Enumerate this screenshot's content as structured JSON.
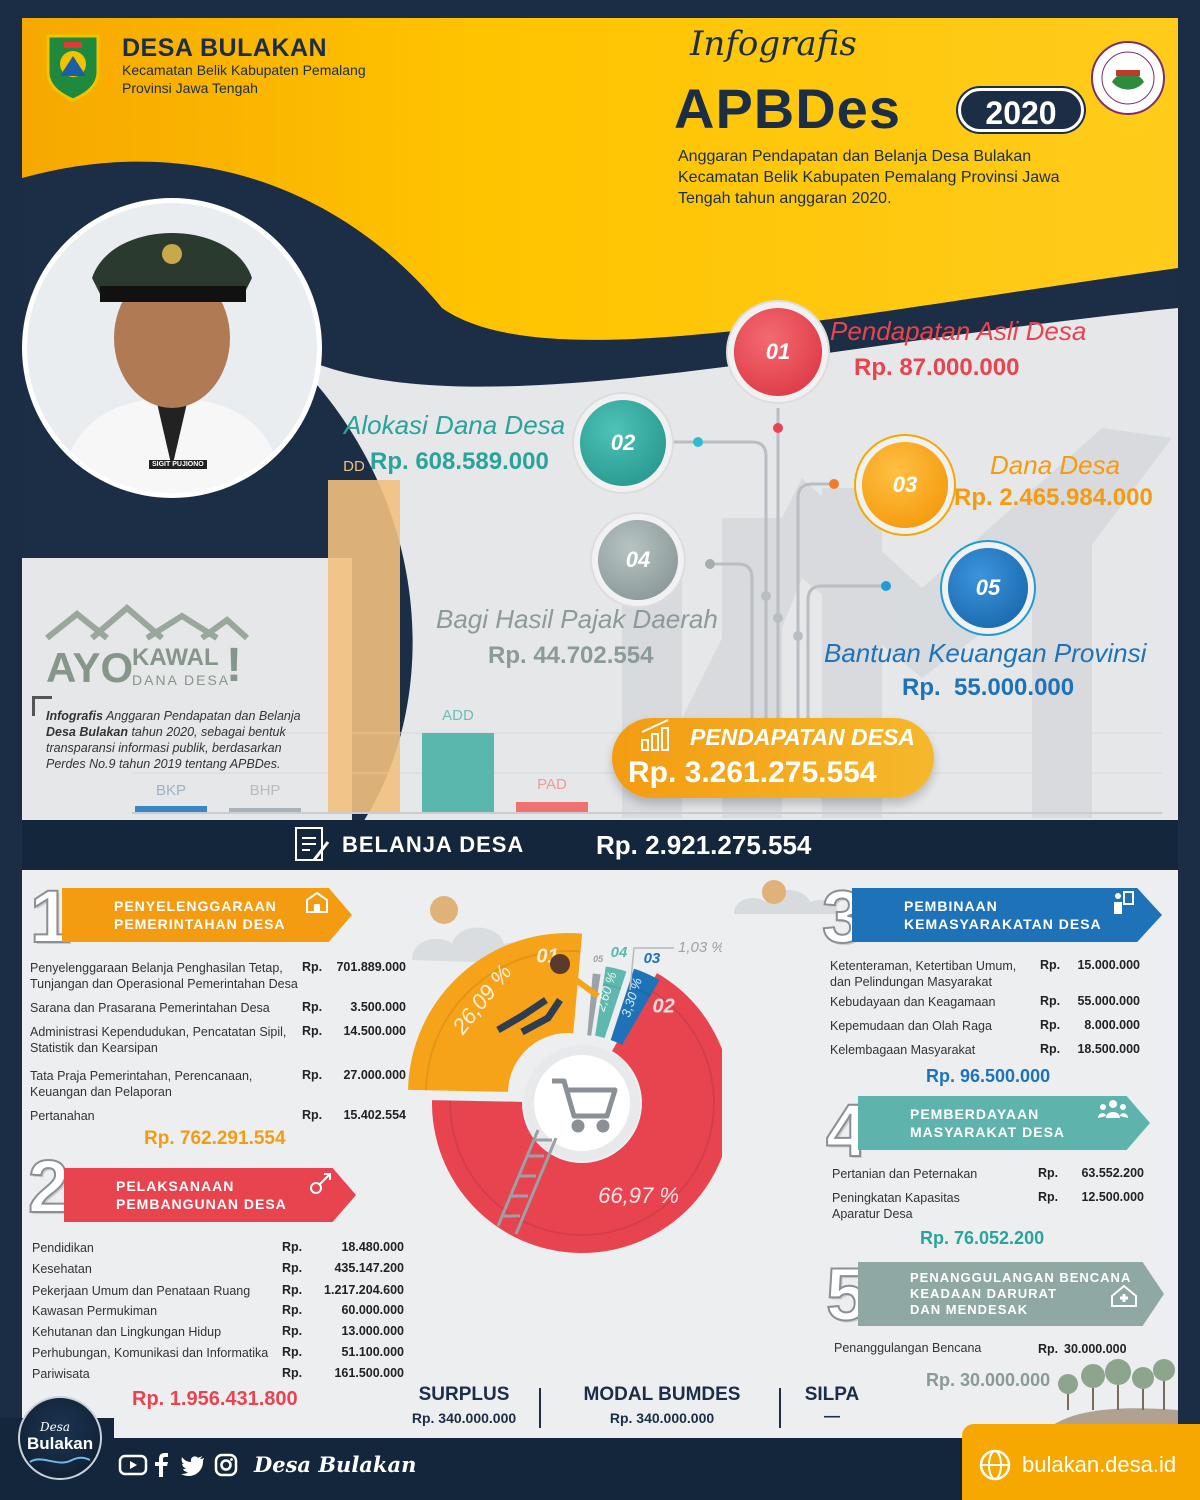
{
  "header": {
    "village": "DESA BULAKAN",
    "subtitle1": "Kecamatan Belik Kabupaten Pemalang",
    "subtitle2": "Provinsi Jawa Tengah",
    "script_title": "Infografis",
    "main_title": "APBDes",
    "year": "2020",
    "description": "Anggaran Pendapatan dan Belanja Desa Bulakan Kecamatan Belik Kabupaten Pemalang Provinsi Jawa Tengah tahun anggaran 2020."
  },
  "portrait": {
    "badge": "SIGIT PUJIONO"
  },
  "ayo": {
    "ayo": "AYO",
    "kawal": "KAWAL",
    "dana": "DANA DESA",
    "excl": "!"
  },
  "note": {
    "bold1": "Infografis",
    "text1": " Anggaran Pendapatan dan Belanja ",
    "bold2": "Desa Bulakan",
    "text2": " tahun 2020, sebagai bentuk transparansi informasi publik, berdasarkan Perdes No.9 tahun 2019 tentang APBDes."
  },
  "bars": [
    {
      "label": "BKP",
      "color": "#3b86c6"
    },
    {
      "label": "BHP",
      "color": "#a9b2b8"
    },
    {
      "label": "DD",
      "color": "#f2c07e"
    },
    {
      "label": "ADD",
      "color": "#59b7ae"
    },
    {
      "label": "PAD",
      "color": "#ef7272"
    }
  ],
  "income": [
    {
      "num": "01",
      "name": "Pendapatan Asli Desa",
      "amount": "Rp. 87.000.000",
      "color": "#e8444f"
    },
    {
      "num": "02",
      "name": "Alokasi Dana Desa",
      "amount": "Rp. 608.589.000",
      "color": "#2ba39a"
    },
    {
      "num": "03",
      "name": "Dana Desa",
      "amount": "Rp. 2.465.984.000",
      "color": "#f39c12"
    },
    {
      "num": "04",
      "name": "Bagi Hasil Pajak Daerah",
      "amount": "Rp. 44.702.554",
      "color": "#8c9a9a"
    },
    {
      "num": "05",
      "name": "Bantuan Keuangan Provinsi",
      "amount": "Rp.  55.000.000",
      "color": "#1e73b8"
    }
  ],
  "pendapatan_total": {
    "label": "PENDAPATAN DESA",
    "amount": "Rp. 3.261.275.554"
  },
  "belanja_total": {
    "label": "BELANJA DESA",
    "amount": "Rp. 2.921.275.554"
  },
  "sections": {
    "s1": {
      "num": "1",
      "title1": "PENYELENGGARAAN",
      "title2": "PEMERINTAHAN DESA",
      "rows": [
        {
          "name": "Penyelenggaraan Belanja Penghasilan Tetap, Tunjangan dan Operasional Pemerintahan Desa",
          "rp": "Rp.",
          "amount": "701.889.000"
        },
        {
          "name": "Sarana dan Prasarana Pemerintahan Desa",
          "rp": "Rp.",
          "amount": "3.500.000"
        },
        {
          "name": "Administrasi Kependudukan, Pencatatan Sipil, Statistik dan Kearsipan",
          "rp": "Rp.",
          "amount": "14.500.000"
        },
        {
          "name": "Tata Praja Pemerintahan, Perencanaan, Keuangan dan Pelaporan",
          "rp": "Rp.",
          "amount": "27.000.000"
        },
        {
          "name": "Pertanahan",
          "rp": "Rp.",
          "amount": "15.402.554"
        }
      ],
      "total": "Rp. 762.291.554"
    },
    "s2": {
      "num": "2",
      "title1": "PELAKSANAAN",
      "title2": "PEMBANGUNAN DESA",
      "rows": [
        {
          "name": "Pendidikan",
          "rp": "Rp.",
          "amount": "18.480.000"
        },
        {
          "name": "Kesehatan",
          "rp": "Rp.",
          "amount": "435.147.200"
        },
        {
          "name": "Pekerjaan Umum dan Penataan Ruang",
          "rp": "Rp.",
          "amount": "1.217.204.600"
        },
        {
          "name": "Kawasan Permukiman",
          "rp": "Rp.",
          "amount": "60.000.000"
        },
        {
          "name": "Kehutanan dan Lingkungan Hidup",
          "rp": "Rp.",
          "amount": "13.000.000"
        },
        {
          "name": "Perhubungan, Komunikasi dan Informatika",
          "rp": "Rp.",
          "amount": "51.100.000"
        },
        {
          "name": "Pariwisata",
          "rp": "Rp.",
          "amount": "161.500.000"
        }
      ],
      "total": "Rp. 1.956.431.800"
    },
    "s3": {
      "num": "3",
      "title1": "PEMBINAAN",
      "title2": "KEMASYARAKATAN DESA",
      "rows": [
        {
          "name": "Ketenteraman, Ketertiban Umum, dan Pelindungan Masyarakat",
          "rp": "Rp.",
          "amount": "15.000.000"
        },
        {
          "name": "Kebudayaan dan Keagamaan",
          "rp": "Rp.",
          "amount": "55.000.000"
        },
        {
          "name": "Kepemudaan dan Olah Raga",
          "rp": "Rp.",
          "amount": "8.000.000"
        },
        {
          "name": "Kelembagaan Masyarakat",
          "rp": "Rp.",
          "amount": "18.500.000"
        }
      ],
      "total": "Rp. 96.500.000"
    },
    "s4": {
      "num": "4",
      "title1": "PEMBERDAYAAN",
      "title2": "MASYARAKAT DESA",
      "rows": [
        {
          "name": "Pertanian dan Peternakan",
          "rp": "Rp.",
          "amount": "63.552.200"
        },
        {
          "name": "Peningkatan Kapasitas Aparatur Desa",
          "rp": "Rp.",
          "amount": "12.500.000"
        }
      ],
      "total": "Rp. 76.052.200"
    },
    "s5": {
      "num": "5",
      "title1": "PENANGGULANGAN BENCANA",
      "title2": "KEADAAN DARURAT",
      "title3": "DAN MENDESAK",
      "rows": [
        {
          "name": "Penanggulangan Bencana",
          "rp": "Rp.",
          "amount": "30.000.000"
        }
      ],
      "total": "Rp. 30.000.000"
    }
  },
  "chart_data": {
    "type": "pie",
    "categories": [
      "01",
      "02",
      "03",
      "04",
      "05"
    ],
    "values": [
      26.09,
      66.97,
      3.3,
      2.6,
      1.03
    ],
    "labels": [
      "26,09 %",
      "66,97 %",
      "3,30 %",
      "2,60 %",
      "1,03 %"
    ],
    "colors": [
      "#f6a31a",
      "#e8444f",
      "#1e73b8",
      "#5fb8ae",
      "#9aa3a8"
    ]
  },
  "summary": [
    {
      "label": "SURPLUS",
      "value": "Rp. 340.000.000"
    },
    {
      "label": "MODAL BUMDES",
      "value": "Rp. 340.000.000"
    },
    {
      "label": "SILPA",
      "value": "—"
    }
  ],
  "footer": {
    "logo_top": "Desa",
    "logo_main": "Bulakan",
    "social_name": "Desa Bulakan",
    "website": "bulakan.desa.id"
  }
}
